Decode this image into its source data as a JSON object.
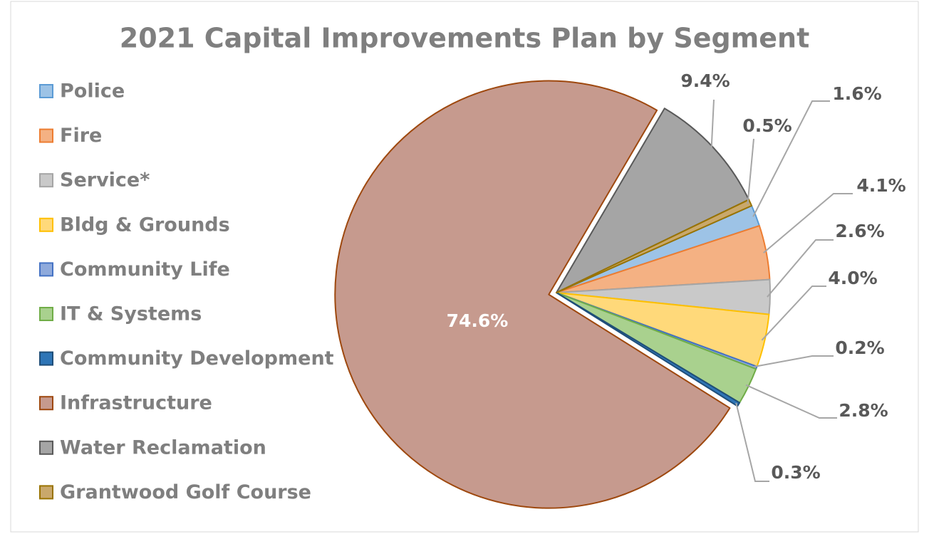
{
  "chart_data": {
    "type": "pie",
    "title": "2021 Capital Improvements Plan by Segment",
    "categories": [
      "Police",
      "Fire",
      "Service*",
      "Bldg & Grounds",
      "Community Life",
      "IT & Systems",
      "Community Development",
      "Infrastructure",
      "Water Reclamation",
      "Grantwood Golf Course"
    ],
    "values": [
      1.6,
      4.1,
      2.6,
      4.0,
      0.2,
      2.8,
      0.3,
      74.6,
      9.4,
      0.5
    ],
    "value_labels": [
      "1.6%",
      "4.1%",
      "2.6%",
      "4.0%",
      "0.2%",
      "2.8%",
      "0.3%",
      "74.6%",
      "9.4%",
      "0.5%"
    ],
    "colors": [
      "#9dc3e6",
      "#f4b183",
      "#c9c9c9",
      "#ffd97a",
      "#8faadc",
      "#a9d18e",
      "#2e75b6",
      "#c69a8e",
      "#a5a5a5",
      "#c9a86b"
    ],
    "edge_colors": [
      "#5b9bd5",
      "#ed7d31",
      "#a5a5a5",
      "#ffc000",
      "#4472c4",
      "#70ad47",
      "#1f4e79",
      "#9e480e",
      "#595959",
      "#997300"
    ],
    "legend": "left"
  }
}
